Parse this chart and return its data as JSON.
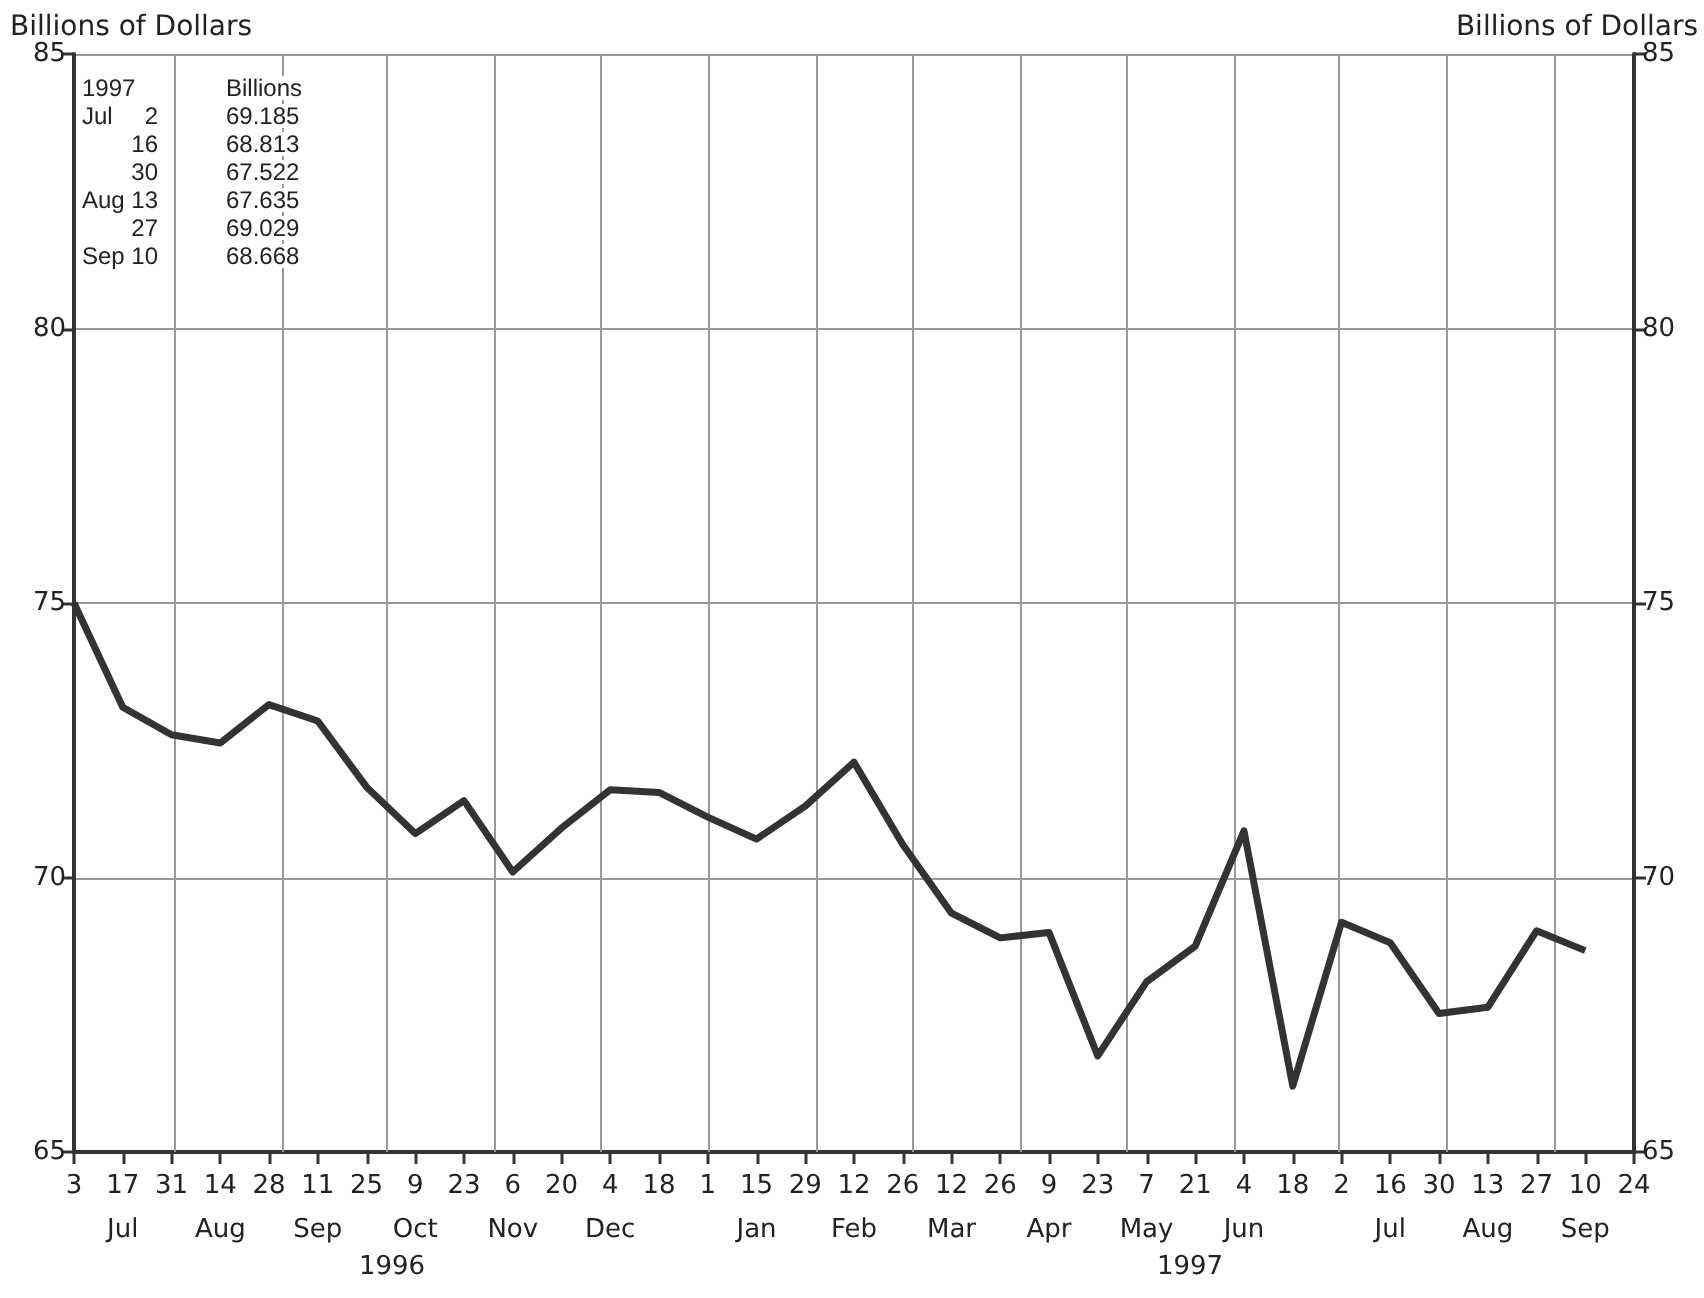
{
  "chart_data": {
    "type": "line",
    "ylabel": "Billions of Dollars",
    "y2label": "Billions of Dollars",
    "x": [
      "1996-07-03",
      "1996-07-17",
      "1996-07-31",
      "1996-08-14",
      "1996-08-28",
      "1996-09-11",
      "1996-09-25",
      "1996-10-09",
      "1996-10-23",
      "1996-11-06",
      "1996-11-20",
      "1996-12-04",
      "1996-12-18",
      "1997-01-01",
      "1997-01-15",
      "1997-01-29",
      "1997-02-12",
      "1997-02-26",
      "1997-03-12",
      "1997-03-26",
      "1997-04-09",
      "1997-04-23",
      "1997-05-07",
      "1997-05-21",
      "1997-06-04",
      "1997-06-18",
      "1997-07-02",
      "1997-07-16",
      "1997-07-30",
      "1997-08-13",
      "1997-08-27",
      "1997-09-10"
    ],
    "series": [
      {
        "color": "#333333",
        "values": [
          75.0,
          73.1,
          72.6,
          72.45,
          73.15,
          72.85,
          71.65,
          70.8,
          71.4,
          70.1,
          70.9,
          71.6,
          71.55,
          71.1,
          70.7,
          71.3,
          72.1,
          70.6,
          69.35,
          68.9,
          69.0,
          66.75,
          68.1,
          68.75,
          70.85,
          66.2,
          69.185,
          68.813,
          67.522,
          67.635,
          69.029,
          68.668
        ]
      }
    ],
    "xlim": [
      "1996-07-03",
      "1997-09-24"
    ],
    "xticks": [
      {
        "value": "1996-07-03",
        "label": "3"
      },
      {
        "value": "1996-07-17",
        "label": "17\nJul"
      },
      {
        "value": "1996-07-31",
        "label": "31"
      },
      {
        "value": "1996-08-14",
        "label": "14\nAug"
      },
      {
        "value": "1996-08-28",
        "label": "28"
      },
      {
        "value": "1996-09-11",
        "label": "11\nSep"
      },
      {
        "value": "1996-09-25",
        "label": "25"
      },
      {
        "value": "1996-10-09",
        "label": "9\nOct"
      },
      {
        "value": "1996-10-23",
        "label": "23"
      },
      {
        "value": "1996-11-06",
        "label": "6\nNov"
      },
      {
        "value": "1996-11-20",
        "label": "20"
      },
      {
        "value": "1996-12-04",
        "label": "4\nDec"
      },
      {
        "value": "1996-12-18",
        "label": "18"
      },
      {
        "value": "1997-01-01",
        "label": "1"
      },
      {
        "value": "1997-01-15",
        "label": "15\nJan"
      },
      {
        "value": "1997-01-29",
        "label": "29"
      },
      {
        "value": "1997-02-12",
        "label": "12\nFeb"
      },
      {
        "value": "1997-02-26",
        "label": "26"
      },
      {
        "value": "1997-03-12",
        "label": "12\nMar"
      },
      {
        "value": "1997-03-26",
        "label": "26"
      },
      {
        "value": "1997-04-09",
        "label": "9\nApr"
      },
      {
        "value": "1997-04-23",
        "label": "23"
      },
      {
        "value": "1997-05-07",
        "label": "7\nMay"
      },
      {
        "value": "1997-05-21",
        "label": "21"
      },
      {
        "value": "1997-06-04",
        "label": "4\nJun"
      },
      {
        "value": "1997-06-18",
        "label": "18"
      },
      {
        "value": "1997-07-02",
        "label": "2"
      },
      {
        "value": "1997-07-16",
        "label": "16\nJul"
      },
      {
        "value": "1997-07-30",
        "label": "30"
      },
      {
        "value": "1997-08-13",
        "label": "13\nAug"
      },
      {
        "value": "1997-08-27",
        "label": "27"
      },
      {
        "value": "1997-09-10",
        "label": "10\nSep"
      },
      {
        "value": "1997-09-24",
        "label": "24"
      }
    ],
    "ylim": [
      65,
      85
    ],
    "yticks": [
      65,
      70,
      75,
      80,
      85
    ],
    "y2lim": [
      65,
      85
    ],
    "y2ticks": [
      65,
      70,
      75,
      80,
      85
    ],
    "grid": "y",
    "marker": "none",
    "line_style": "solid",
    "ref_lines": [
      {
        "axis": "x",
        "value": "1996-08-01",
        "color": "#999999"
      },
      {
        "axis": "x",
        "value": "1996-09-01",
        "color": "#999999"
      },
      {
        "axis": "x",
        "value": "1996-10-01",
        "color": "#999999"
      },
      {
        "axis": "x",
        "value": "1996-11-01",
        "color": "#999999"
      },
      {
        "axis": "x",
        "value": "1996-12-01",
        "color": "#999999"
      },
      {
        "axis": "x",
        "value": "1997-01-01",
        "color": "#999999"
      },
      {
        "axis": "x",
        "value": "1997-02-01",
        "color": "#999999"
      },
      {
        "axis": "x",
        "value": "1997-03-01",
        "color": "#999999"
      },
      {
        "axis": "x",
        "value": "1997-04-01",
        "color": "#999999"
      },
      {
        "axis": "x",
        "value": "1997-05-01",
        "color": "#999999"
      },
      {
        "axis": "x",
        "value": "1997-06-01",
        "color": "#999999"
      },
      {
        "axis": "x",
        "value": "1997-07-01",
        "color": "#999999"
      },
      {
        "axis": "x",
        "value": "1997-08-01",
        "color": "#999999"
      },
      {
        "axis": "x",
        "value": "1997-09-01",
        "color": "#999999"
      }
    ],
    "annotations": [
      "1997\t\tBillions",
      "Jul\t2\t69.185",
      "\t16\t68.813",
      "\t30\t67.522",
      "Aug\t13\t67.635",
      "\t27\t69.029",
      "Sep\t10\t68.668",
      "1996",
      "1997"
    ]
  }
}
